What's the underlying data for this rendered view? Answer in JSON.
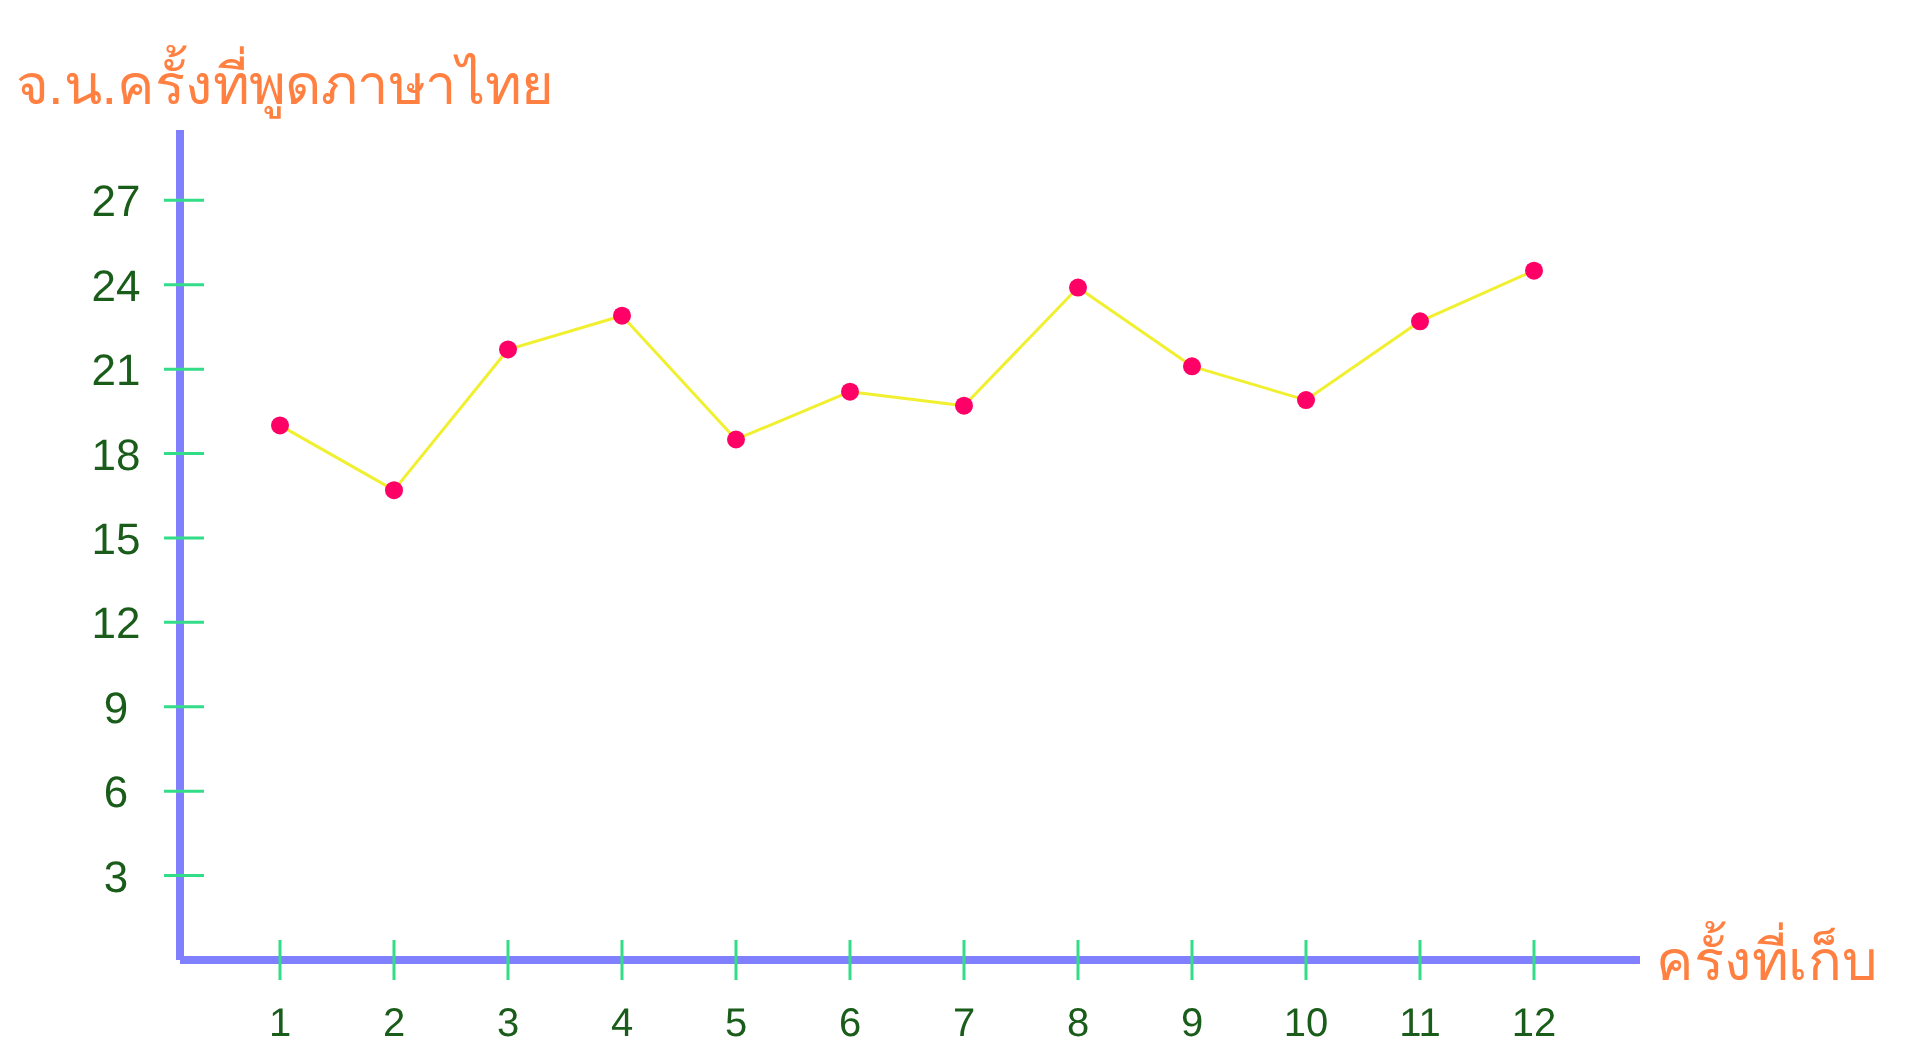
{
  "chart_data": {
    "type": "line",
    "xlabel": "ครั้งที่เก็บ",
    "ylabel": "จ.น.ครั้งที่พูดภาษาไทย",
    "categories": [
      "1",
      "2",
      "3",
      "4",
      "5",
      "6",
      "7",
      "8",
      "9",
      "10",
      "11",
      "12"
    ],
    "series": [
      {
        "color": "#f0f030",
        "values": [
          19.0,
          16.7,
          21.7,
          22.9,
          18.5,
          20.2,
          19.7,
          23.9,
          21.1,
          19.9,
          22.7,
          24.5
        ]
      }
    ],
    "marker": "circle",
    "line_style": "solid",
    "ylim": [
      0,
      29.5
    ],
    "yticks": [
      3,
      6,
      9,
      12,
      15,
      18,
      21,
      24,
      27
    ]
  }
}
